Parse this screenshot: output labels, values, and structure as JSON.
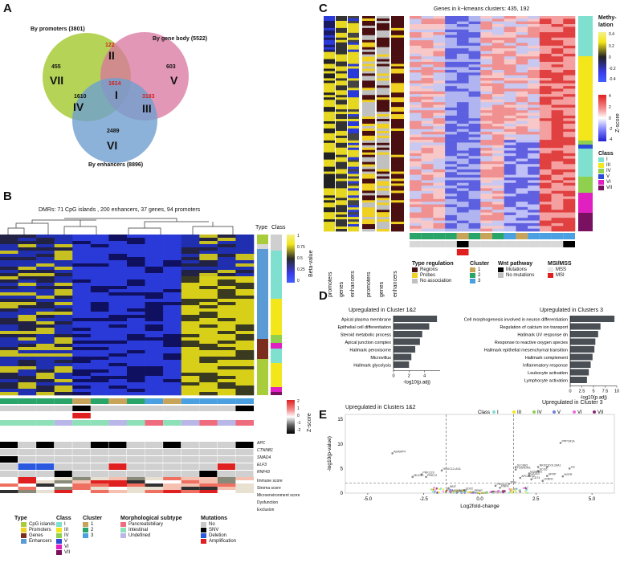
{
  "panels": {
    "a": "A",
    "b": "B",
    "c": "C",
    "d": "D",
    "e": "E"
  },
  "venn": {
    "sets": {
      "promoters": "By promoters (3801)",
      "gene_body": "By gene body (5522)",
      "enhancers": "By enhancers (8896)"
    },
    "regions": [
      {
        "roman": "VII",
        "count": "455"
      },
      {
        "roman": "II",
        "count": "122"
      },
      {
        "roman": "V",
        "count": "603"
      },
      {
        "roman": "I",
        "count": "1614"
      },
      {
        "roman": "IV",
        "count": "1610"
      },
      {
        "roman": "III",
        "count": "3183"
      },
      {
        "roman": "VI",
        "count": "2489"
      }
    ],
    "colors": {
      "promoters": "#a8cc3a",
      "gene_body": "#d9749e",
      "enhancers": "#6f9fd0"
    }
  },
  "heatmap_b": {
    "title": "DMRs: 71 CpG islands , 200 enhancers, 37 genes, 94 promoters",
    "type_label": "Type",
    "class_label": "Class",
    "beta_label": "Beta-value",
    "beta_ticks": [
      "1",
      "0.75",
      "0.5",
      "0.25",
      "0"
    ],
    "genes": [
      "APC",
      "CTNNB1",
      "SMAD4",
      "ELF3",
      "RNF43"
    ],
    "scores": [
      "Immune score",
      "Stroma score",
      "Microenvironment score",
      "Dysfunction",
      "Exclusion"
    ],
    "zscore_label": "Z-score",
    "zscore_ticks": [
      "2",
      "1",
      "0",
      "-1",
      "-2"
    ]
  },
  "legend_b": {
    "type": {
      "title": "Type",
      "items": [
        {
          "label": "CpG islands",
          "color": "#a8cc3a"
        },
        {
          "label": "Promoters",
          "color": "#f0d020"
        },
        {
          "label": "Genes",
          "color": "#7b2d1e"
        },
        {
          "label": "Enhancers",
          "color": "#5b9bd5"
        }
      ]
    },
    "class": {
      "title": "Class",
      "items": [
        {
          "label": "I",
          "color": "#7fe0d0"
        },
        {
          "label": "III",
          "color": "#f3e61a"
        },
        {
          "label": "IV",
          "color": "#8fd14f"
        },
        {
          "label": "V",
          "color": "#2b4bd8"
        },
        {
          "label": "VI",
          "color": "#e020c0"
        },
        {
          "label": "VII",
          "color": "#7a1060"
        }
      ]
    },
    "cluster": {
      "title": "Cluster",
      "items": [
        {
          "label": "1",
          "color": "#c8a35a"
        },
        {
          "label": "2",
          "color": "#2aa56a"
        },
        {
          "label": "3",
          "color": "#4aa0e0"
        }
      ]
    },
    "morph": {
      "title": "Morphological subtype",
      "items": [
        {
          "label": "Pancreatobiliary",
          "color": "#ef6b7e"
        },
        {
          "label": "Intestinal",
          "color": "#8ee0b8"
        },
        {
          "label": "Undefined",
          "color": "#b9b6e8"
        }
      ]
    },
    "mutations": {
      "title": "Mutations",
      "items": [
        {
          "label": "No",
          "color": "#c8c8c8"
        },
        {
          "label": "SNV",
          "color": "#000000"
        },
        {
          "label": "Deletion",
          "color": "#2a59e0"
        },
        {
          "label": "Amplification",
          "color": "#e02020"
        }
      ]
    }
  },
  "heatmap_c": {
    "title": "Genes in k−kmeans clusters: 435, 192",
    "methylation_label": "Methy-lation",
    "meth_ticks": [
      "0.4",
      "0.2",
      "0",
      "-0.2",
      "-0.4"
    ],
    "zscore_label": "Z-score",
    "z_ticks": [
      "4",
      "2",
      "0",
      "-2",
      "-4"
    ],
    "class_label": "Class",
    "class_items": [
      {
        "label": "I",
        "color": "#7fe0d0"
      },
      {
        "label": "III",
        "color": "#f3e61a"
      },
      {
        "label": "IV",
        "color": "#8fd14f"
      },
      {
        "label": "V",
        "color": "#2b4bd8"
      },
      {
        "label": "VI",
        "color": "#e020c0"
      },
      {
        "label": "VII",
        "color": "#7a1060"
      }
    ],
    "col_labels_left": [
      "promoters",
      "genes",
      "enhancers"
    ],
    "col_labels_mid": [
      "promoters",
      "genes",
      "enhancers"
    ],
    "legend": {
      "type_reg": {
        "title": "Type regulation",
        "items": [
          {
            "label": "Regions",
            "color": "#4a0f10"
          },
          {
            "label": "Probes",
            "color": "#f0d020"
          },
          {
            "label": "No association",
            "color": "#c0c0c0"
          }
        ]
      },
      "cluster": {
        "title": "Cluster",
        "items": [
          {
            "label": "1",
            "color": "#c8a35a"
          },
          {
            "label": "2",
            "color": "#2aa56a"
          },
          {
            "label": "3",
            "color": "#4aa0e0"
          }
        ]
      },
      "wnt": {
        "title": "Wnt pathway",
        "items": [
          {
            "label": "Mutations",
            "color": "#000000"
          },
          {
            "label": "No mutations",
            "color": "#c0c0c0"
          }
        ]
      },
      "msi": {
        "title": "MSI/MSS",
        "items": [
          {
            "label": "MSS",
            "color": "#e8e8e8"
          },
          {
            "label": "MSI",
            "color": "#e02020"
          }
        ]
      }
    }
  },
  "chart_data": [
    {
      "type": "bar",
      "title": "Upregulated in Cluster 1&2",
      "orientation": "horizontal",
      "categories": [
        "Apical plasma membrane",
        "Epithelial cell differentiation",
        "Steroid metabolic process",
        "Apical junction complex",
        "Hallmark peroxisome",
        "Microvillus",
        "Hallmark glycolysis"
      ],
      "values": [
        5.6,
        4.6,
        3.7,
        3.4,
        2.8,
        2.3,
        2.0
      ],
      "xlabel": "-log10(p.adj)",
      "xticks": [
        "0",
        "2",
        "4"
      ],
      "xlim": [
        0,
        6
      ]
    },
    {
      "type": "bar",
      "title": "Upregulated in Clusters 3",
      "orientation": "horizontal",
      "categories": [
        "Cell morphogenesis involved in neuron differentiation",
        "Regulation of calcium ion transport",
        "Hallmark UV response dn",
        "Response to reactive oxygen species",
        "Hallmark epithelial mesenchymal transition",
        "Hallmark complement",
        "Inflammatory response",
        "Leukocyte activation",
        "Lymphocyte activation"
      ],
      "values": [
        9.5,
        6.5,
        6.0,
        5.4,
        5.2,
        4.8,
        4.4,
        4.0,
        3.6
      ],
      "xlabel": "-log10(p.adj)",
      "xticks": [
        "0",
        "2.5",
        "5",
        "7.5",
        "10"
      ],
      "xlim": [
        0,
        10
      ]
    },
    {
      "type": "scatter",
      "title": "Volcano plot",
      "left_title": "Upregulated in Clusters 1&2",
      "right_title": "Upregulated in Cluster 3",
      "xlabel": "Log2fold-change",
      "ylabel": "-log10(p-value)",
      "xticks": [
        "-5.0",
        "-2.5",
        "0.0",
        "2.5",
        "5.0"
      ],
      "yticks": [
        "0",
        "5",
        "10",
        "15"
      ],
      "xlim": [
        -6,
        6
      ],
      "ylim": [
        0,
        16
      ],
      "legend_title": "Class",
      "legend": [
        {
          "label": "I",
          "color": "#7fe0d0"
        },
        {
          "label": "III",
          "color": "#f3e61a"
        },
        {
          "label": "IV",
          "color": "#8fd14f"
        },
        {
          "label": "V",
          "color": "#6f7fe0"
        },
        {
          "label": "VI",
          "color": "#f06ad8"
        },
        {
          "label": "VII",
          "color": "#8a2a70"
        }
      ],
      "labeled_points": [
        {
          "label": "ADAMP4",
          "x": -3.9,
          "y": 8.1
        },
        {
          "label": "HOXC12-AS1",
          "x": -1.7,
          "y": 4.6
        },
        {
          "label": "PRKCZ6",
          "x": -2.6,
          "y": 3.8
        },
        {
          "label": "MUC20",
          "x": -3.0,
          "y": 3.3
        },
        {
          "label": "PRKCZ",
          "x": -2.4,
          "y": 3.3
        },
        {
          "label": "WNT",
          "x": -1.4,
          "y": 1.0
        },
        {
          "label": "SOX2",
          "x": -0.7,
          "y": 0.6
        },
        {
          "label": "MKI67",
          "x": -1.3,
          "y": 0.1
        },
        {
          "label": "RORB",
          "x": -1.0,
          "y": -0.3
        },
        {
          "label": "PRNP",
          "x": -0.3,
          "y": -0.6
        },
        {
          "label": "PPP1R1A",
          "x": 3.6,
          "y": 10.2
        },
        {
          "label": "SLC8A3",
          "x": 1.6,
          "y": 5.3
        },
        {
          "label": "NKD21",
          "x": 2.6,
          "y": 5.3
        },
        {
          "label": "COL28A1",
          "x": 3.0,
          "y": 5.3
        },
        {
          "label": "IL6",
          "x": 4.0,
          "y": 5.0
        },
        {
          "label": "TGD4DM1",
          "x": 1.6,
          "y": 4.8
        },
        {
          "label": "SCG5",
          "x": 2.6,
          "y": 4.5
        },
        {
          "label": "KCNMB1",
          "x": 2.2,
          "y": 4.0
        },
        {
          "label": "GATA3",
          "x": 2.2,
          "y": 3.6
        },
        {
          "label": "SFRP",
          "x": 3.0,
          "y": 3.5
        },
        {
          "label": "NGFR",
          "x": 3.7,
          "y": 3.4
        },
        {
          "label": "APCAKS2",
          "x": 1.8,
          "y": 3.1
        },
        {
          "label": "CD74",
          "x": 2.3,
          "y": 2.8
        },
        {
          "label": "LRRN1",
          "x": 2.8,
          "y": 2.5
        },
        {
          "label": "TRH",
          "x": 1.3,
          "y": 1.9
        },
        {
          "label": "PRKCD",
          "x": 0.7,
          "y": 1.5
        },
        {
          "label": "RNF6",
          "x": 0.9,
          "y": 1.1
        }
      ],
      "vlines": [
        -1.5,
        1.5
      ],
      "hline": 2.0
    }
  ]
}
